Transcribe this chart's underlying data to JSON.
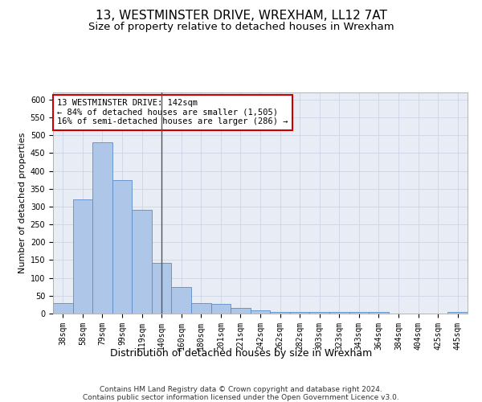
{
  "title": "13, WESTMINSTER DRIVE, WREXHAM, LL12 7AT",
  "subtitle": "Size of property relative to detached houses in Wrexham",
  "xlabel": "Distribution of detached houses by size in Wrexham",
  "ylabel": "Number of detached properties",
  "bar_labels": [
    "38sqm",
    "58sqm",
    "79sqm",
    "99sqm",
    "119sqm",
    "140sqm",
    "160sqm",
    "180sqm",
    "201sqm",
    "221sqm",
    "242sqm",
    "262sqm",
    "282sqm",
    "303sqm",
    "323sqm",
    "343sqm",
    "364sqm",
    "384sqm",
    "404sqm",
    "425sqm",
    "445sqm"
  ],
  "bar_values": [
    30,
    320,
    480,
    375,
    290,
    143,
    75,
    30,
    27,
    15,
    8,
    5,
    4,
    4,
    4,
    4,
    4,
    1,
    1,
    1,
    5
  ],
  "bar_color": "#aec6e8",
  "bar_edge_color": "#5b8cc8",
  "highlight_bar_index": 5,
  "highlight_line_color": "#555555",
  "annotation_text": "13 WESTMINSTER DRIVE: 142sqm\n← 84% of detached houses are smaller (1,505)\n16% of semi-detached houses are larger (286) →",
  "annotation_box_color": "#ffffff",
  "annotation_box_edge_color": "#cc0000",
  "ylim": [
    0,
    620
  ],
  "yticks": [
    0,
    50,
    100,
    150,
    200,
    250,
    300,
    350,
    400,
    450,
    500,
    550,
    600
  ],
  "grid_color": "#cdd5e5",
  "background_color": "#e8edf5",
  "footer_line1": "Contains HM Land Registry data © Crown copyright and database right 2024.",
  "footer_line2": "Contains public sector information licensed under the Open Government Licence v3.0.",
  "title_fontsize": 11,
  "subtitle_fontsize": 9.5,
  "xlabel_fontsize": 9,
  "ylabel_fontsize": 8,
  "tick_fontsize": 7,
  "annotation_fontsize": 7.5,
  "footer_fontsize": 6.5
}
